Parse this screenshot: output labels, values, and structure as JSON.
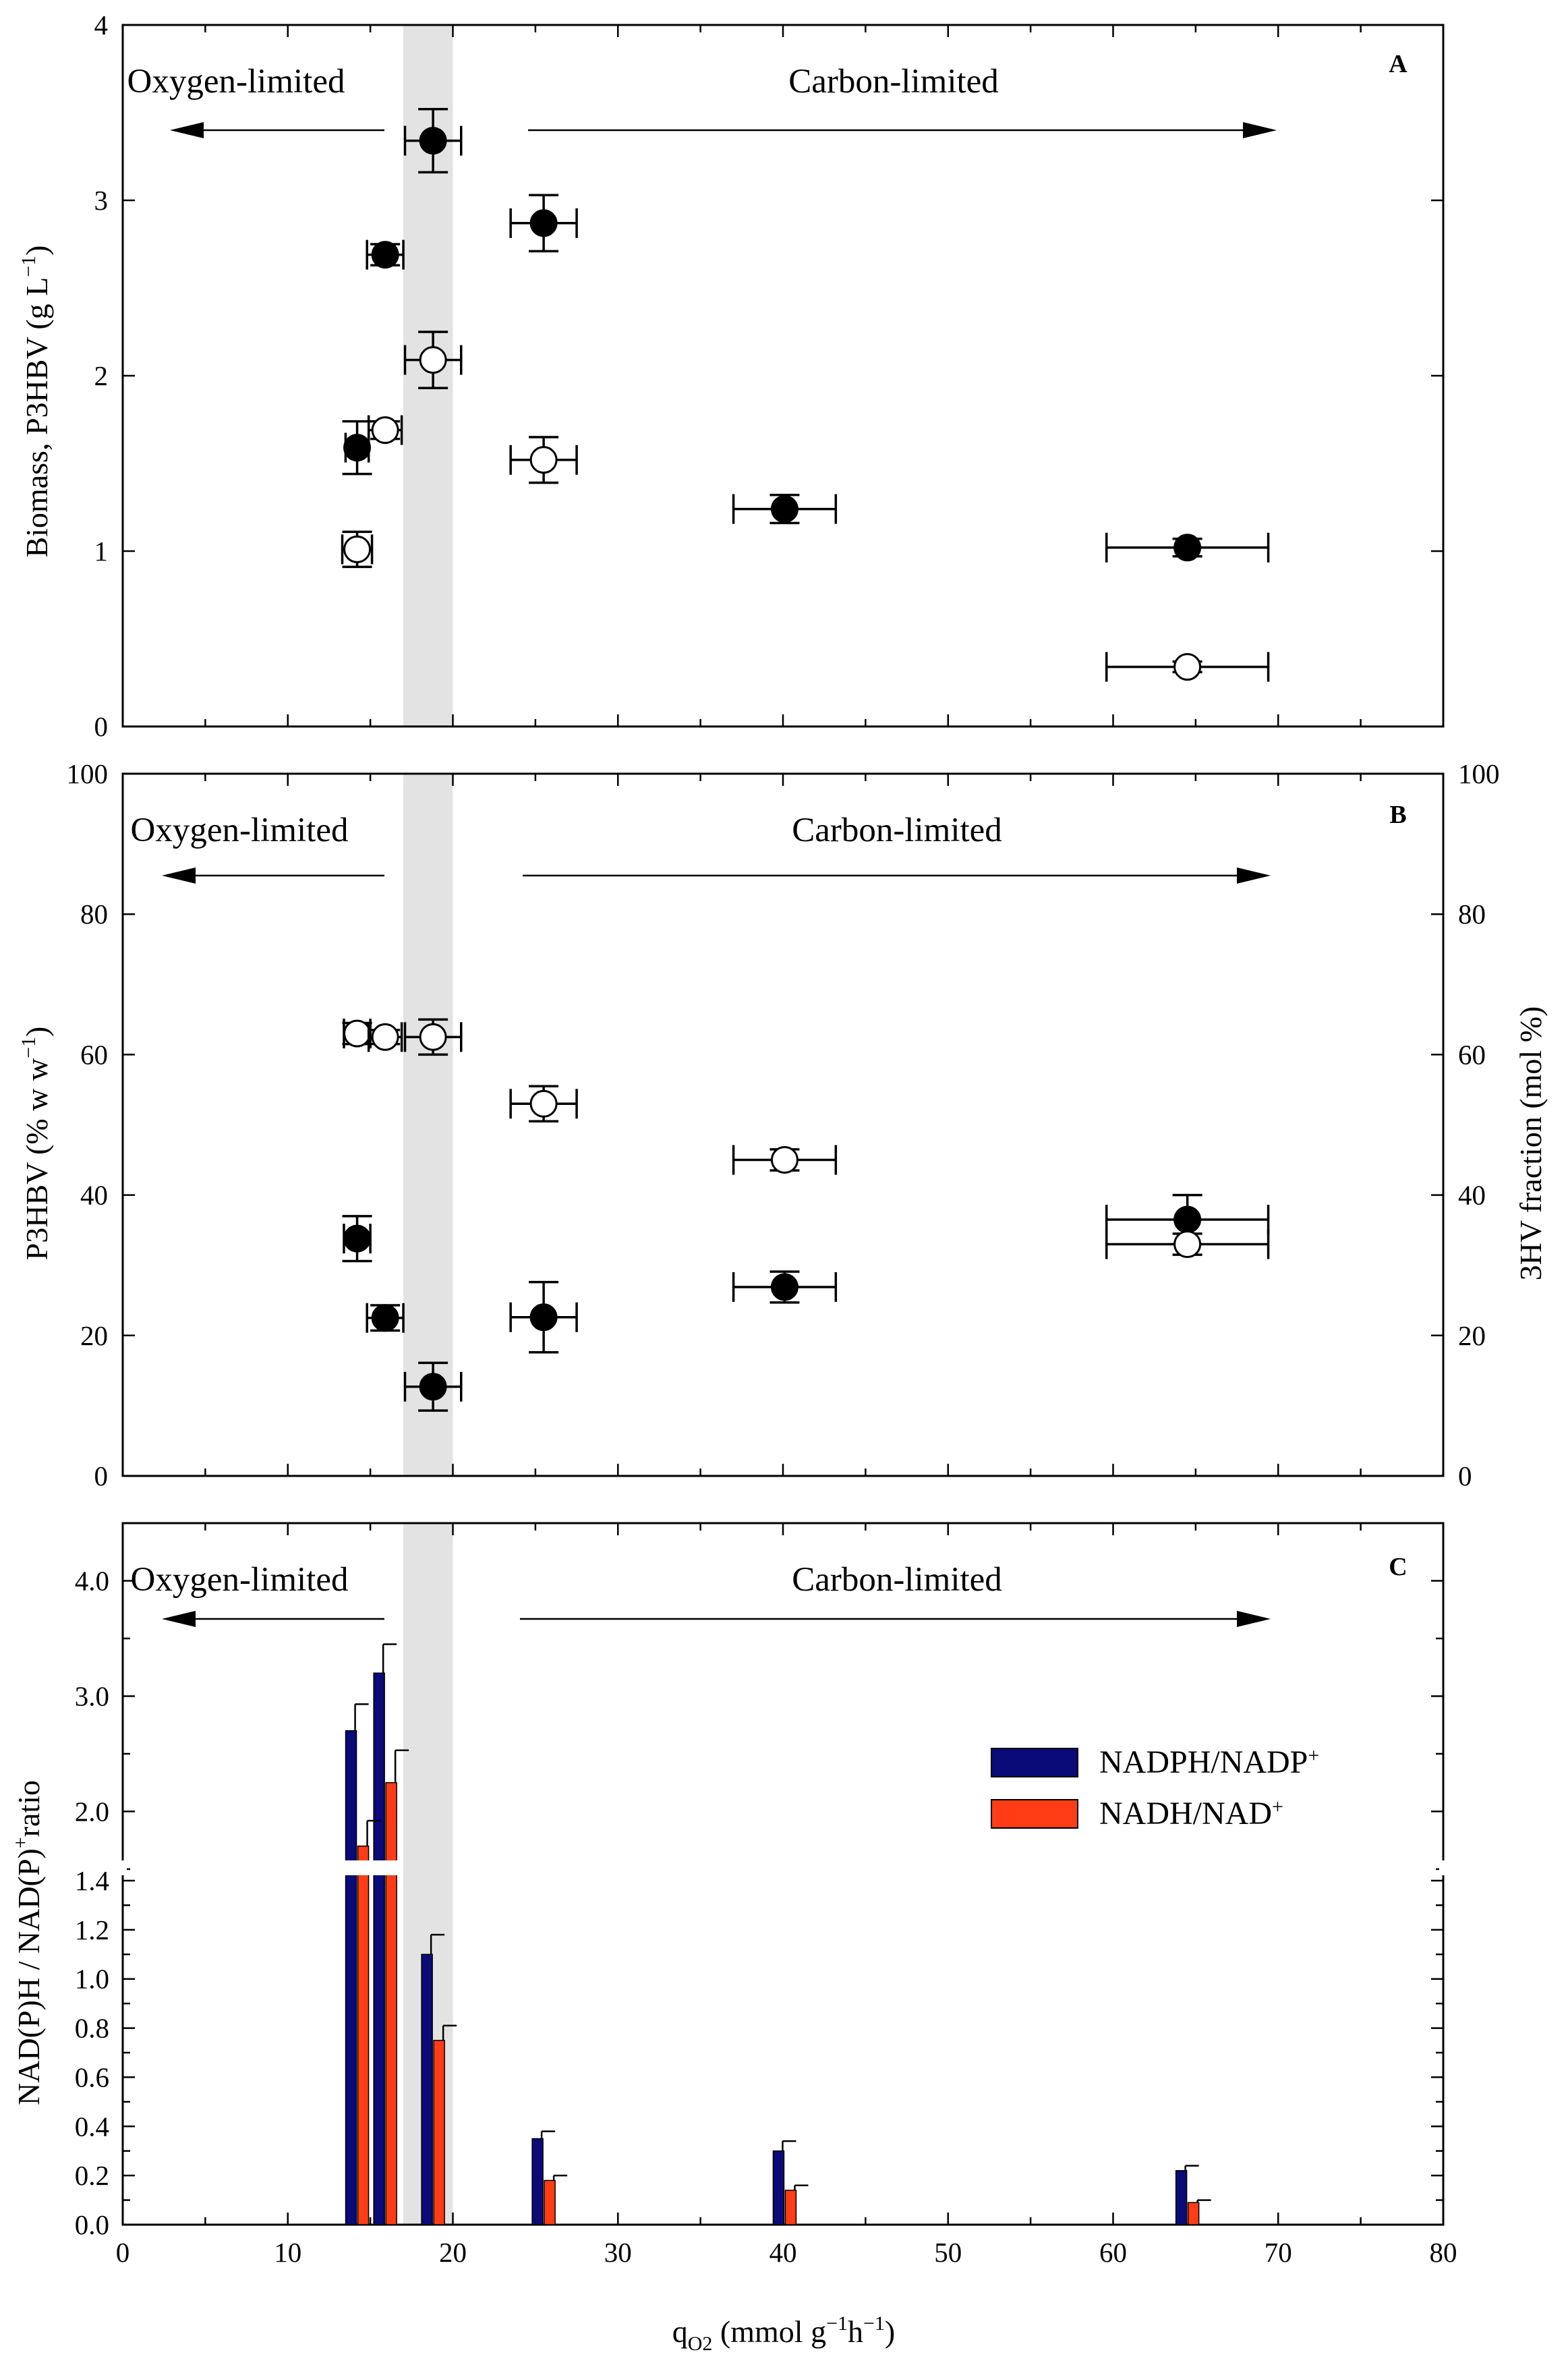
{
  "x_axis": {
    "title": "qO2 (mmol g−1h−1)",
    "title_main": "q",
    "title_sub": "O2",
    "title_rest": " (mmol g",
    "sup1": "−1",
    "mid": "h",
    "sup2": "−1",
    "close": ")",
    "ticks": [
      "0",
      "10",
      "20",
      "30",
      "40",
      "50",
      "60",
      "70",
      "80"
    ],
    "range": [
      0,
      80
    ]
  },
  "transition_band": [
    17,
    20
  ],
  "region_labels": {
    "oxygen": "Oxygen-limited",
    "carbon": "Carbon-limited"
  },
  "colors": {
    "filled": "#000000",
    "open": "#ffffff",
    "band": "#e3e3e3",
    "nadph": "#0a0a78",
    "nadh": "#ff3c14"
  },
  "chart_data": [
    {
      "panel": "A",
      "type": "scatter",
      "ylabel": "Biomass, P3HBV (g L−1)",
      "ylabel_main": "Biomass, P3HBV (g L",
      "ylabel_sup": "−1",
      "ylabel_close": ")",
      "ylim": [
        0,
        4
      ],
      "yticks": [
        "0",
        "1",
        "2",
        "3",
        "4"
      ],
      "series": [
        {
          "name": "filled circles",
          "marker": "filled",
          "points": [
            {
              "x": 14.2,
              "y": 1.59,
              "xerr": 0.7,
              "yerr": 0.15
            },
            {
              "x": 15.9,
              "y": 2.69,
              "xerr": 1.1,
              "yerr": 0.06
            },
            {
              "x": 18.8,
              "y": 3.34,
              "xerr": 1.7,
              "yerr": 0.18
            },
            {
              "x": 25.5,
              "y": 2.87,
              "xerr": 2.0,
              "yerr": 0.16
            },
            {
              "x": 40.1,
              "y": 1.24,
              "xerr": 3.1,
              "yerr": 0.08
            },
            {
              "x": 64.5,
              "y": 1.02,
              "xerr": 4.9,
              "yerr": 0.05
            }
          ]
        },
        {
          "name": "open circles",
          "marker": "open",
          "points": [
            {
              "x": 14.2,
              "y": 1.01,
              "xerr": 0.9,
              "yerr": 0.1
            },
            {
              "x": 15.9,
              "y": 1.69,
              "xerr": 1.0,
              "yerr": 0.05
            },
            {
              "x": 18.8,
              "y": 2.09,
              "xerr": 1.7,
              "yerr": 0.16
            },
            {
              "x": 25.5,
              "y": 1.52,
              "xerr": 2.0,
              "yerr": 0.13
            },
            {
              "x": 64.5,
              "y": 0.34,
              "xerr": 4.9,
              "yerr": 0.03
            }
          ]
        }
      ]
    },
    {
      "panel": "B",
      "type": "scatter",
      "ylabel": "P3HBV (% w w−1)",
      "ylabel_main": "P3HBV (% w w",
      "ylabel_sup": "−1",
      "ylabel_close": ")",
      "y2label": "3HV fraction (mol %)",
      "ylim": [
        0,
        100
      ],
      "yticks": [
        "0",
        "20",
        "40",
        "60",
        "80",
        "100"
      ],
      "series": [
        {
          "name": "P3HBV content (filled)",
          "marker": "filled",
          "points": [
            {
              "x": 14.2,
              "y": 33.8,
              "xerr": 0.8,
              "yerr": 3.2
            },
            {
              "x": 15.9,
              "y": 22.5,
              "xerr": 1.1,
              "yerr": 1.8
            },
            {
              "x": 18.8,
              "y": 12.7,
              "xerr": 1.7,
              "yerr": 3.4
            },
            {
              "x": 25.5,
              "y": 22.6,
              "xerr": 2.0,
              "yerr": 5.0
            },
            {
              "x": 40.1,
              "y": 26.9,
              "xerr": 3.1,
              "yerr": 2.2
            },
            {
              "x": 64.5,
              "y": 36.5,
              "xerr": 4.9,
              "yerr": 3.5
            }
          ]
        },
        {
          "name": "3HV fraction (open)",
          "marker": "open",
          "points": [
            {
              "x": 14.2,
              "y": 63.0,
              "xerr": 0.8,
              "yerr": 1.5
            },
            {
              "x": 15.9,
              "y": 62.5,
              "xerr": 1.0,
              "yerr": 1.0
            },
            {
              "x": 18.8,
              "y": 62.5,
              "xerr": 1.7,
              "yerr": 2.5
            },
            {
              "x": 25.5,
              "y": 53.0,
              "xerr": 2.0,
              "yerr": 2.5
            },
            {
              "x": 40.1,
              "y": 45.0,
              "xerr": 3.1,
              "yerr": 1.5
            },
            {
              "x": 64.5,
              "y": 33.0,
              "xerr": 4.9,
              "yerr": 1.5
            }
          ]
        }
      ]
    },
    {
      "panel": "C",
      "type": "bar",
      "ylabel": "NAD(P)H / NAD(P)+ ratio",
      "ylabel_main": "NAD(P)H / NAD(P)",
      "ylabel_sup": "+",
      "ylabel_rest": "ratio",
      "y_broken": true,
      "ylim_lower": [
        0,
        1.4
      ],
      "ylim_upper": [
        1.4,
        4.5
      ],
      "yticks_lower": [
        "0.0",
        "0.2",
        "0.4",
        "0.6",
        "0.8",
        "1.0",
        "1.2",
        "1.4"
      ],
      "yticks_upper": [
        "2.0",
        "3.0",
        "4.0"
      ],
      "x": [
        14.2,
        15.9,
        18.8,
        25.5,
        40.1,
        64.5
      ],
      "series": [
        {
          "name": "NADPH/NADP+",
          "label_main": "NADPH/NADP",
          "label_sup": "+",
          "values": [
            2.7,
            3.2,
            1.1,
            0.35,
            0.3,
            0.22
          ],
          "errors": [
            0.23,
            0.25,
            0.08,
            0.03,
            0.04,
            0.02
          ]
        },
        {
          "name": "NADH/NAD+",
          "label_main": "NADH/NAD",
          "label_sup": "+",
          "values": [
            1.7,
            2.25,
            0.75,
            0.18,
            0.14,
            0.09
          ],
          "errors": [
            0.22,
            0.28,
            0.06,
            0.02,
            0.02,
            0.01
          ]
        }
      ]
    }
  ]
}
